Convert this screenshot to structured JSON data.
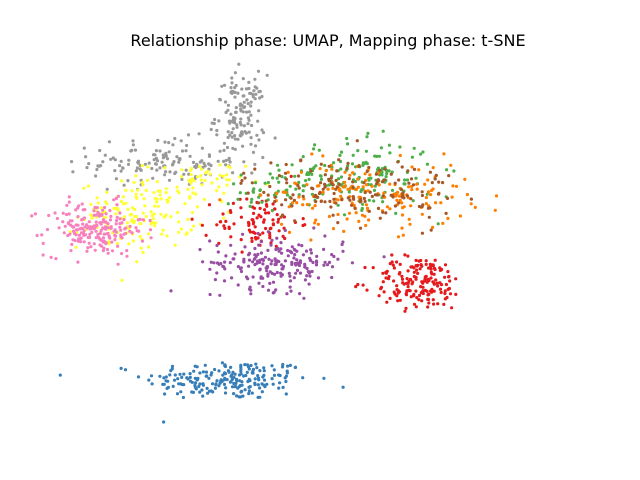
{
  "chart_data": {
    "type": "scatter",
    "title": "Relationship phase: UMAP, Mapping phase: t-SNE",
    "xlabel": "",
    "ylabel": "",
    "axes_visible": false,
    "grid": false,
    "legend": "none",
    "xlim": [
      0,
      100
    ],
    "ylim": [
      0,
      100
    ],
    "point_radius_px": 1.6,
    "series_colors": {
      "blue": "#377eb8",
      "gray": "#999999",
      "yellow": "#ffff33",
      "pink": "#f781bf",
      "red": "#e41a1c",
      "purple": "#984ea3",
      "green": "#4daf4a",
      "orange": "#ff7f00",
      "brown": "#a65628"
    },
    "clusters": [
      {
        "series": "blue",
        "cx": 26.0,
        "cy": 9.0,
        "sx": 10.0,
        "sy": 3.0,
        "n": 210
      },
      {
        "series": "gray",
        "cx": 11.0,
        "cy": 74.0,
        "sx": 9.0,
        "sy": 3.5,
        "n": 140
      },
      {
        "series": "gray",
        "cx": 29.0,
        "cy": 88.0,
        "sx": 3.0,
        "sy": 6.0,
        "n": 130
      },
      {
        "series": "yellow",
        "cx": 4.0,
        "cy": 58.0,
        "sx": 7.0,
        "sy": 5.0,
        "n": 150
      },
      {
        "series": "yellow",
        "cx": 18.0,
        "cy": 68.0,
        "sx": 6.0,
        "sy": 3.0,
        "n": 60
      },
      {
        "series": "pink",
        "cx": -6.0,
        "cy": 54.0,
        "sx": 6.0,
        "sy": 4.0,
        "n": 200
      },
      {
        "series": "red",
        "cx": 33.0,
        "cy": 56.0,
        "sx": 5.0,
        "sy": 4.0,
        "n": 90
      },
      {
        "series": "red",
        "cx": 72.0,
        "cy": 38.0,
        "sx": 5.5,
        "sy": 4.0,
        "n": 170
      },
      {
        "series": "purple",
        "cx": 38.0,
        "cy": 44.0,
        "sx": 8.0,
        "sy": 4.0,
        "n": 200
      },
      {
        "series": "green",
        "cx": 58.0,
        "cy": 70.0,
        "sx": 9.0,
        "sy": 5.0,
        "n": 160
      },
      {
        "series": "green",
        "cx": 38.0,
        "cy": 66.0,
        "sx": 6.0,
        "sy": 3.0,
        "n": 50
      },
      {
        "series": "orange",
        "cx": 60.0,
        "cy": 64.0,
        "sx": 12.0,
        "sy": 5.0,
        "n": 170
      },
      {
        "series": "brown",
        "cx": 56.0,
        "cy": 66.0,
        "sx": 13.0,
        "sy": 5.0,
        "n": 160
      }
    ]
  }
}
